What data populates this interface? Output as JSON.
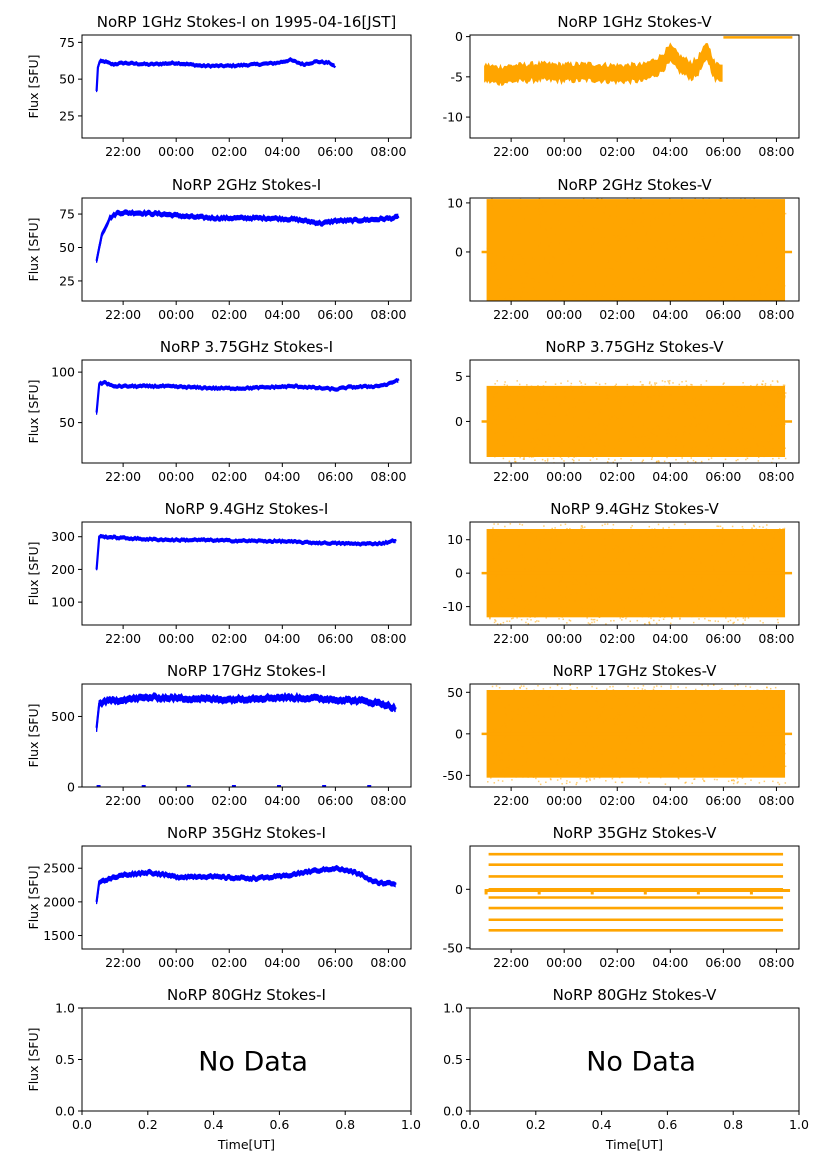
{
  "figure": {
    "time_axis_label": "Time[UT]",
    "flux_axis_label": "Flux [SFU]",
    "no_data_text": "No Data"
  },
  "colors": {
    "stokes_i": "#0000ff",
    "stokes_v": "#ffa500"
  },
  "chart_data": [
    {
      "id": "i1",
      "type": "line",
      "title": "NoRP 1GHz Stokes-I on 1995-04-16[JST]",
      "ylabel": "Flux [SFU]",
      "ylim": [
        10,
        80
      ],
      "yticks": [
        25,
        50,
        75
      ],
      "xlim": [
        20.45,
        32.85
      ],
      "xticks": [
        "22:00",
        "00:00",
        "02:00",
        "04:00",
        "06:00",
        "08:00"
      ],
      "series": [
        {
          "x": [
            21.0,
            21.05,
            21.12,
            21.3,
            21.6,
            22,
            23,
            24,
            25,
            26,
            27,
            27.8,
            28.3,
            28.8,
            29.3,
            29.8,
            30.0
          ],
          "y": [
            42,
            58,
            62,
            62,
            60,
            61,
            60,
            61,
            59,
            59,
            60,
            61,
            63,
            60,
            62,
            61,
            58
          ]
        }
      ],
      "band": 2
    },
    {
      "id": "v1",
      "type": "scatter",
      "title": "NoRP 1GHz Stokes-V",
      "ylim": [
        -12.6,
        0.2
      ],
      "yticks": [
        0,
        -5,
        -10
      ],
      "xlim": [
        20.45,
        32.85
      ],
      "xticks": [
        "22:00",
        "00:00",
        "02:00",
        "04:00",
        "06:00",
        "08:00"
      ],
      "series": [
        {
          "x": [
            21.0,
            21.5,
            22,
            23,
            24,
            25,
            26,
            27,
            27.6,
            28.0,
            28.4,
            28.8,
            29.0,
            29.4,
            29.7,
            30.0
          ],
          "y": [
            -4.5,
            -4.8,
            -4.6,
            -4.4,
            -4.5,
            -4.4,
            -4.6,
            -4.5,
            -3.5,
            -2.2,
            -3.5,
            -4.2,
            -3.8,
            -1.8,
            -4.5,
            -4.2
          ]
        },
        {
          "x": [
            30.0,
            32.6
          ],
          "y": [
            -0.1,
            -0.1
          ]
        }
      ],
      "band": 1.0
    },
    {
      "id": "i2",
      "type": "line",
      "title": "NoRP 2GHz Stokes-I",
      "ylabel": "Flux [SFU]",
      "ylim": [
        10,
        87
      ],
      "yticks": [
        25,
        50,
        75
      ],
      "xlim": [
        20.45,
        32.85
      ],
      "xticks": [
        "22:00",
        "00:00",
        "02:00",
        "04:00",
        "06:00",
        "08:00"
      ],
      "series": [
        {
          "x": [
            21.0,
            21.2,
            21.5,
            21.8,
            22.5,
            23.5,
            24.5,
            25.5,
            26.5,
            27.5,
            28.5,
            29.5,
            30.0,
            30.5,
            31.5,
            32.2,
            32.4
          ],
          "y": [
            40,
            60,
            72,
            76,
            76,
            75,
            73,
            72,
            72,
            72,
            71,
            68,
            70,
            70,
            71,
            72,
            73
          ]
        }
      ],
      "band": 3
    },
    {
      "id": "v2",
      "type": "scatter",
      "title": "NoRP 2GHz Stokes-V",
      "ylim": [
        -10,
        11
      ],
      "yticks": [
        10,
        0
      ],
      "xlim": [
        20.45,
        32.85
      ],
      "xticks": [
        "22:00",
        "00:00",
        "02:00",
        "04:00",
        "06:00",
        "08:00"
      ],
      "series": [
        {
          "x": [
            21.0,
            32.4
          ],
          "y": [
            0,
            0
          ]
        }
      ],
      "band": 12
    },
    {
      "id": "i3",
      "type": "line",
      "title": "NoRP 3.75GHz Stokes-I",
      "ylabel": "Flux [SFU]",
      "ylim": [
        10,
        112
      ],
      "yticks": [
        100,
        50
      ],
      "xlim": [
        20.45,
        32.85
      ],
      "xticks": [
        "22:00",
        "00:00",
        "02:00",
        "04:00",
        "06:00",
        "08:00"
      ],
      "series": [
        {
          "x": [
            21.0,
            21.1,
            21.3,
            21.6,
            22.5,
            23.5,
            24.5,
            25.5,
            26.5,
            27.5,
            28.5,
            29.5,
            30.0,
            30.5,
            31.5,
            32.0,
            32.4
          ],
          "y": [
            60,
            88,
            90,
            86,
            86,
            86,
            85,
            84,
            84,
            85,
            86,
            84,
            83,
            85,
            86,
            88,
            93
          ]
        }
      ],
      "band": 3
    },
    {
      "id": "v3",
      "type": "scatter",
      "title": "NoRP 3.75GHz Stokes-V",
      "ylim": [
        -4.6,
        6.8
      ],
      "yticks": [
        5,
        0
      ],
      "xlim": [
        20.45,
        32.85
      ],
      "xticks": [
        "22:00",
        "00:00",
        "02:00",
        "04:00",
        "06:00",
        "08:00"
      ],
      "series": [
        {
          "x": [
            21.0,
            32.4
          ],
          "y": [
            0,
            0
          ]
        }
      ],
      "band": 4.6
    },
    {
      "id": "i4",
      "type": "line",
      "title": "NoRP 9.4GHz Stokes-I",
      "ylabel": "Flux [SFU]",
      "ylim": [
        30,
        345
      ],
      "yticks": [
        300,
        200,
        100
      ],
      "xlim": [
        20.45,
        32.85
      ],
      "xticks": [
        "22:00",
        "00:00",
        "02:00",
        "04:00",
        "06:00",
        "08:00"
      ],
      "series": [
        {
          "x": [
            21.0,
            21.1,
            21.3,
            22.0,
            23.0,
            24.0,
            25.0,
            26.0,
            27.0,
            28.0,
            29.0,
            30.0,
            31.0,
            31.8,
            32.3
          ],
          "y": [
            200,
            300,
            300,
            296,
            292,
            290,
            290,
            288,
            287,
            286,
            282,
            280,
            278,
            280,
            290
          ]
        }
      ],
      "band": 9
    },
    {
      "id": "v4",
      "type": "scatter",
      "title": "NoRP 9.4GHz Stokes-V",
      "ylim": [
        -15.5,
        15.3
      ],
      "yticks": [
        10,
        0,
        -10
      ],
      "xlim": [
        20.45,
        32.85
      ],
      "xticks": [
        "22:00",
        "00:00",
        "02:00",
        "04:00",
        "06:00",
        "08:00"
      ],
      "series": [
        {
          "x": [
            21.0,
            32.4
          ],
          "y": [
            0,
            0
          ]
        }
      ],
      "band": 15
    },
    {
      "id": "i5",
      "type": "line",
      "title": "NoRP 17GHz Stokes-I",
      "ylabel": "Flux [SFU]",
      "ylim": [
        0,
        730
      ],
      "yticks": [
        500,
        0
      ],
      "xlim": [
        20.45,
        32.85
      ],
      "xticks": [
        "22:00",
        "00:00",
        "02:00",
        "04:00",
        "06:00",
        "08:00"
      ],
      "series": [
        {
          "x": [
            21.0,
            21.1,
            21.3,
            22.0,
            23.0,
            24.0,
            25.0,
            26.0,
            27.0,
            28.0,
            29.0,
            30.0,
            31.0,
            31.8,
            32.3
          ],
          "y": [
            420,
            590,
            605,
            620,
            635,
            630,
            625,
            620,
            630,
            635,
            630,
            620,
            610,
            590,
            555
          ]
        }
      ],
      "band": 40
    },
    {
      "id": "v5",
      "type": "scatter",
      "title": "NoRP 17GHz Stokes-V",
      "ylim": [
        -64,
        60
      ],
      "yticks": [
        50,
        0,
        -50
      ],
      "xlim": [
        20.45,
        32.85
      ],
      "xticks": [
        "22:00",
        "00:00",
        "02:00",
        "04:00",
        "06:00",
        "08:00"
      ],
      "series": [
        {
          "x": [
            21.0,
            32.4
          ],
          "y": [
            0,
            0
          ]
        }
      ],
      "band": 60
    },
    {
      "id": "i6",
      "type": "line",
      "title": "NoRP 35GHz Stokes-I",
      "ylabel": "Flux [SFU]",
      "ylim": [
        1300,
        2830
      ],
      "yticks": [
        2500,
        2000,
        1500
      ],
      "xlim": [
        20.45,
        32.85
      ],
      "xticks": [
        "22:00",
        "00:00",
        "02:00",
        "04:00",
        "06:00",
        "08:00"
      ],
      "series": [
        {
          "x": [
            21.0,
            21.1,
            21.4,
            22.0,
            23.0,
            24.0,
            25.0,
            26.0,
            27.0,
            28.0,
            29.0,
            30.0,
            30.6,
            31.0,
            31.4,
            31.8,
            32.3
          ],
          "y": [
            2000,
            2300,
            2330,
            2400,
            2440,
            2370,
            2380,
            2360,
            2350,
            2380,
            2450,
            2500,
            2450,
            2400,
            2300,
            2280,
            2270
          ]
        }
      ],
      "band": 60
    },
    {
      "id": "v6",
      "type": "scatter",
      "title": "NoRP 35GHz Stokes-V",
      "ylim": [
        -51,
        37
      ],
      "yticks": [
        0,
        -50
      ],
      "xlim": [
        20.45,
        32.85
      ],
      "xticks": [
        "22:00",
        "00:00",
        "02:00",
        "04:00",
        "06:00",
        "08:00"
      ],
      "series": [
        {
          "x": [
            21.0,
            32.4
          ],
          "y": [
            0,
            0
          ]
        }
      ],
      "levels": [
        30,
        21,
        11,
        0,
        -7,
        -16,
        -26,
        -35
      ]
    },
    {
      "id": "i7",
      "type": "empty",
      "title": "NoRP 80GHz Stokes-I",
      "ylabel": "Flux [SFU]",
      "xlabel": "Time[UT]",
      "xlim": [
        0,
        1
      ],
      "ylim": [
        0,
        1
      ],
      "xticks": [
        "0.0",
        "0.2",
        "0.4",
        "0.6",
        "0.8",
        "1.0"
      ],
      "yticks": [
        "1.0",
        "0.5",
        "0.0"
      ]
    },
    {
      "id": "v7",
      "type": "empty",
      "title": "NoRP 80GHz Stokes-V",
      "xlabel": "Time[UT]",
      "xlim": [
        0,
        1
      ],
      "ylim": [
        0,
        1
      ],
      "xticks": [
        "0.0",
        "0.2",
        "0.4",
        "0.6",
        "0.8",
        "1.0"
      ],
      "yticks": [
        "1.0",
        "0.5",
        "0.0"
      ]
    }
  ]
}
